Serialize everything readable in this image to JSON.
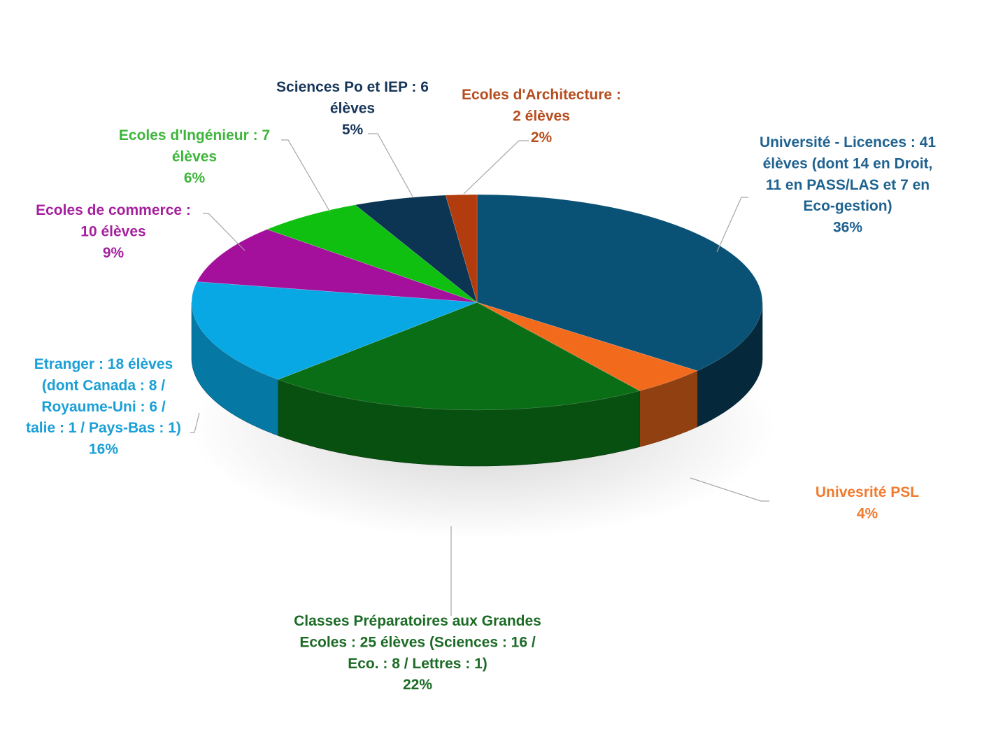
{
  "chart_data": {
    "type": "pie",
    "title": "",
    "slices": [
      {
        "lines": [
          "Université - Licences : 41",
          "élèves (dont 14 en Droit,",
          "11 en PASS/LAS et 7 en",
          "Eco-gestion)"
        ],
        "pct_label": "36%",
        "value": 41,
        "color": "#0a5275",
        "label_color": "#1f6290"
      },
      {
        "lines": [
          "Univesrité PSL"
        ],
        "pct_label": "4%",
        "value": 5,
        "color": "#f26b1d",
        "label_color": "#ef7b2f"
      },
      {
        "lines": [
          "Classes Préparatoires aux Grandes",
          "Ecoles : 25 élèves (Sciences : 16 /",
          "Eco. : 8 / Lettres : 1)"
        ],
        "pct_label": "22%",
        "value": 25,
        "color": "#0a6e16",
        "label_color": "#1c6b25"
      },
      {
        "lines": [
          "Etranger : 18 élèves",
          "(dont Canada : 8 /",
          "Royaume-Uni : 6 /",
          "talie : 1 / Pays-Bas : 1)"
        ],
        "pct_label": "16%",
        "value": 18,
        "color": "#07a8e4",
        "label_color": "#1a9fd6"
      },
      {
        "lines": [
          "Ecoles de commerce :",
          "10 élèves"
        ],
        "pct_label": "9%",
        "value": 10,
        "color": "#a4109c",
        "label_color": "#a5209f"
      },
      {
        "lines": [
          "Ecoles d'Ingénieur : 7",
          "élèves"
        ],
        "pct_label": "6%",
        "value": 7,
        "color": "#10c010",
        "label_color": "#3eb53b"
      },
      {
        "lines": [
          "Sciences Po et IEP : 6",
          "élèves"
        ],
        "pct_label": "5%",
        "value": 6,
        "color": "#0b3552",
        "label_color": "#17365a"
      },
      {
        "lines": [
          "Ecoles d'Architecture :",
          "2 élèves"
        ],
        "pct_label": "2%",
        "value": 2,
        "color": "#b23c0d",
        "label_color": "#b64d1f"
      }
    ]
  }
}
